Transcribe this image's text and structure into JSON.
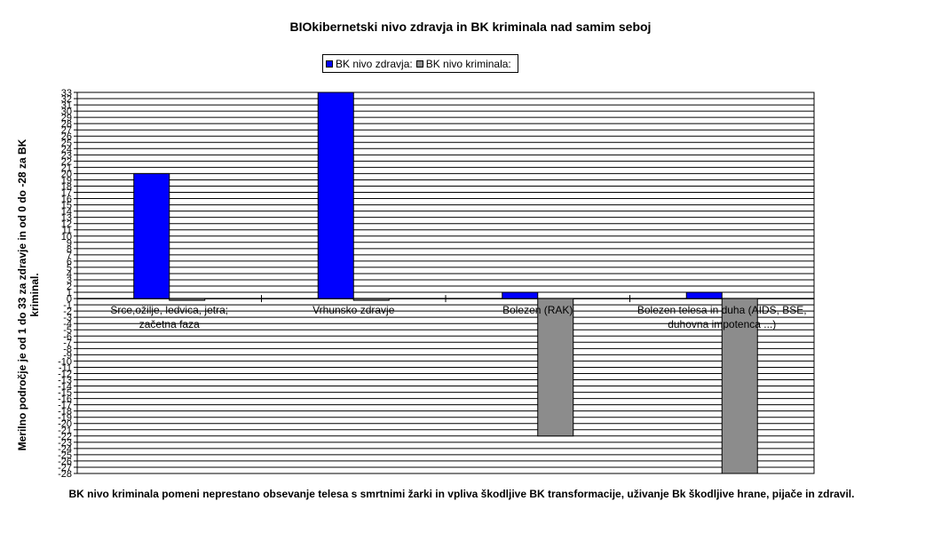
{
  "chart_data": {
    "type": "bar",
    "title": "BIOkibernetski nivo zdravja in BK kriminala nad samim seboj",
    "ylabel": "Merilno področje je od 1 do 33 za zdravje in od 0 do -28 za BK kriminal.",
    "xlabel": "BK nivo kriminala pomeni neprestano obsevanje telesa s smrtnimi žarki in vpliva škodljive BK transformacije, uživanje Bk škodljive hrane, pijače in zdravil.",
    "ylim": [
      -28,
      33
    ],
    "ytick_step": 1,
    "grid": true,
    "legend_position": "top-center",
    "categories": [
      "Srce,ožilje, ledvica, jetra; začetna faza",
      "Vrhunsko zdravje",
      "Bolezen (RAK)",
      "Bolezen telesa in duha (AIDS, BSE, duhovna impotenca ...)"
    ],
    "series": [
      {
        "name": "BK nivo zdravja:",
        "color": "#0000ff",
        "values": [
          20,
          33,
          1,
          1
        ]
      },
      {
        "name": "BK nivo kriminala:",
        "color": "#8c8c8c",
        "values": [
          0,
          0,
          -22,
          -28
        ]
      }
    ]
  }
}
